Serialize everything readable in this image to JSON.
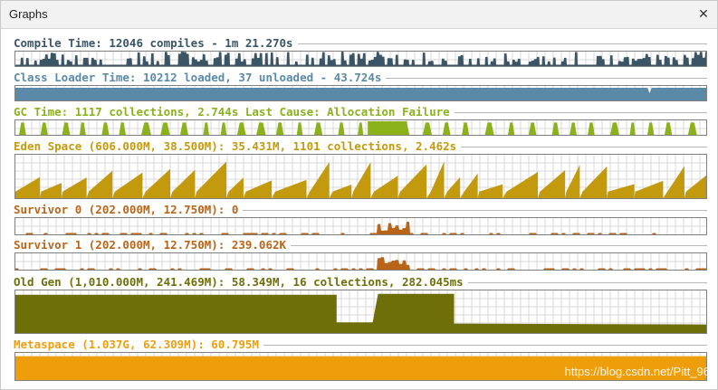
{
  "window": {
    "title": "Graphs",
    "close_icon": "close-icon"
  },
  "panels": [
    {
      "id": "compile-time",
      "label": "Compile Time: 12046 compiles - 1m 21.270s",
      "color": "#3a5566",
      "kind": "spikes"
    },
    {
      "id": "class-loader-time",
      "label": "Class Loader Time: 10212 loaded, 37 unloaded - 43.724s",
      "color": "#5a8aa8",
      "kind": "full"
    },
    {
      "id": "gc-time",
      "label": "GC Time: 1117 collections, 2.744s  Last Cause: Allocation Failure",
      "color": "#8bb21a",
      "kind": "bumps"
    },
    {
      "id": "eden-space",
      "label": "Eden Space (606.000M, 38.500M): 35.431M, 1101 collections, 2.462s",
      "color": "#c39a0e",
      "kind": "sawtooth"
    },
    {
      "id": "survivor-0",
      "label": "Survivor 0 (202.000M, 12.750M): 0",
      "color": "#b8651a",
      "kind": "sparse"
    },
    {
      "id": "survivor-1",
      "label": "Survivor 1 (202.000M, 12.750M): 239.062K",
      "color": "#b8651a",
      "kind": "sparse"
    },
    {
      "id": "old-gen",
      "label": "Old Gen (1,010.000M, 241.469M): 58.349M, 16 collections, 282.045ms",
      "color": "#6f6f0a",
      "kind": "steps"
    },
    {
      "id": "metaspace",
      "label": "Metaspace (1.037G, 62.309M): 60.795M",
      "color": "#ee9e0a",
      "kind": "full"
    }
  ],
  "watermark": "https://blog.csdn.net/Pitt_96"
}
